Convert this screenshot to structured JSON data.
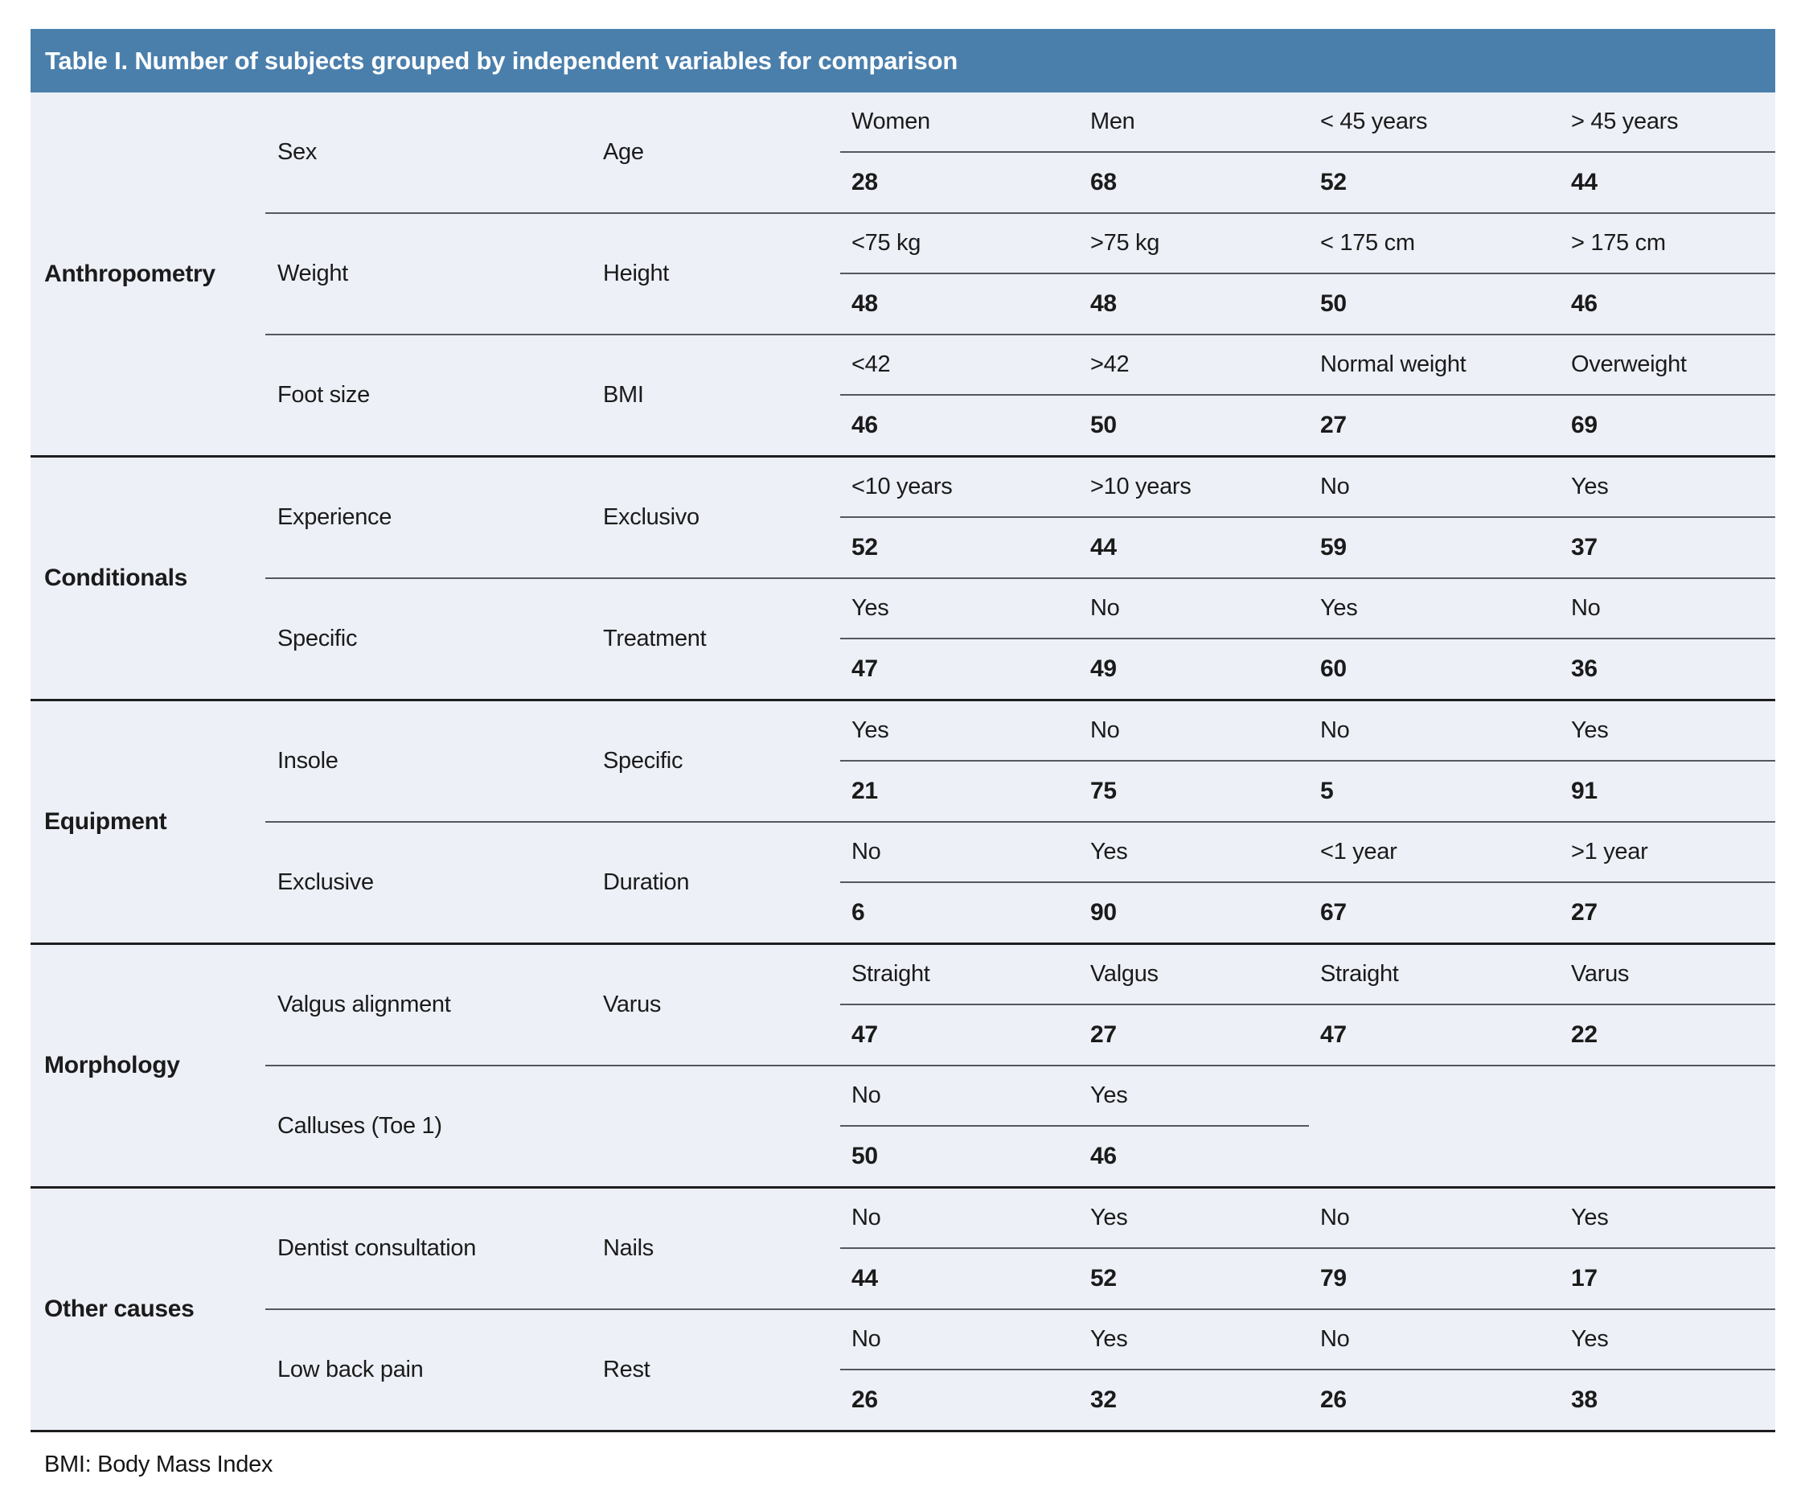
{
  "title": "Table I. Number of subjects grouped by independent variables for comparison",
  "footnote": "BMI: Body Mass Index",
  "colors": {
    "header_bg": "#4a7fac",
    "body_bg": "#edf0f7",
    "line": "#54585e",
    "group_line": "#1e1e20",
    "title_text": "#ffffff"
  },
  "groups": [
    {
      "label": "Anthropometry",
      "rows": [
        {
          "left": {
            "name": "Sex",
            "c1": "Women",
            "v1": "28",
            "c2": "Men",
            "v2": "68"
          },
          "right": {
            "name": "Age",
            "c1": "< 45 years",
            "v1": "52",
            "c2": "> 45 years",
            "v2": "44"
          }
        },
        {
          "left": {
            "name": "Weight",
            "c1": "<75 kg",
            "v1": "48",
            "c2": ">75 kg",
            "v2": "48"
          },
          "right": {
            "name": "Height",
            "c1": "< 175 cm",
            "v1": "50",
            "c2": "> 175 cm",
            "v2": "46"
          }
        },
        {
          "left": {
            "name": "Foot size",
            "c1": "<42",
            "v1": "46",
            "c2": ">42",
            "v2": "50"
          },
          "right": {
            "name": "BMI",
            "c1": "Normal weight",
            "v1": "27",
            "c2": "Overweight",
            "v2": "69"
          }
        }
      ]
    },
    {
      "label": "Conditionals",
      "rows": [
        {
          "left": {
            "name": "Experience",
            "c1": "<10 years",
            "v1": "52",
            "c2": ">10 years",
            "v2": "44"
          },
          "right": {
            "name": "Exclusivo",
            "c1": "No",
            "v1": "59",
            "c2": "Yes",
            "v2": "37"
          }
        },
        {
          "left": {
            "name": "Specific",
            "c1": "Yes",
            "v1": "47",
            "c2": "No",
            "v2": "49"
          },
          "right": {
            "name": "Treatment",
            "c1": "Yes",
            "v1": "60",
            "c2": "No",
            "v2": "36"
          }
        }
      ]
    },
    {
      "label": "Equipment",
      "rows": [
        {
          "left": {
            "name": "Insole",
            "c1": "Yes",
            "v1": "21",
            "c2": "No",
            "v2": "75"
          },
          "right": {
            "name": "Specific",
            "c1": "No",
            "v1": "5",
            "c2": "Yes",
            "v2": "91"
          }
        },
        {
          "left": {
            "name": "Exclusive",
            "c1": "No",
            "v1": "6",
            "c2": "Yes",
            "v2": "90"
          },
          "right": {
            "name": "Duration",
            "c1": "<1 year",
            "v1": "67",
            "c2": ">1 year",
            "v2": "27"
          }
        }
      ]
    },
    {
      "label": "Morphology",
      "rows": [
        {
          "left": {
            "name": "Valgus alignment",
            "c1": "Straight",
            "v1": "47",
            "c2": "Valgus",
            "v2": "27"
          },
          "right": {
            "name": "Varus",
            "c1": "Straight",
            "v1": "47",
            "c2": "Varus",
            "v2": "22"
          }
        },
        {
          "left": {
            "name": "Calluses (Toe 1)",
            "c1": "No",
            "v1": "50",
            "c2": "Yes",
            "v2": "46"
          },
          "right": null
        }
      ]
    },
    {
      "label": "Other causes",
      "rows": [
        {
          "left": {
            "name": "Dentist consultation",
            "c1": "No",
            "v1": "44",
            "c2": "Yes",
            "v2": "52"
          },
          "right": {
            "name": "Nails",
            "c1": "No",
            "v1": "79",
            "c2": "Yes",
            "v2": "17"
          }
        },
        {
          "left": {
            "name": "Low back pain",
            "c1": "No",
            "v1": "26",
            "c2": "Yes",
            "v2": "32"
          },
          "right": {
            "name": "Rest",
            "c1": "No",
            "v1": "26",
            "c2": "Yes",
            "v2": "38"
          }
        }
      ]
    }
  ]
}
